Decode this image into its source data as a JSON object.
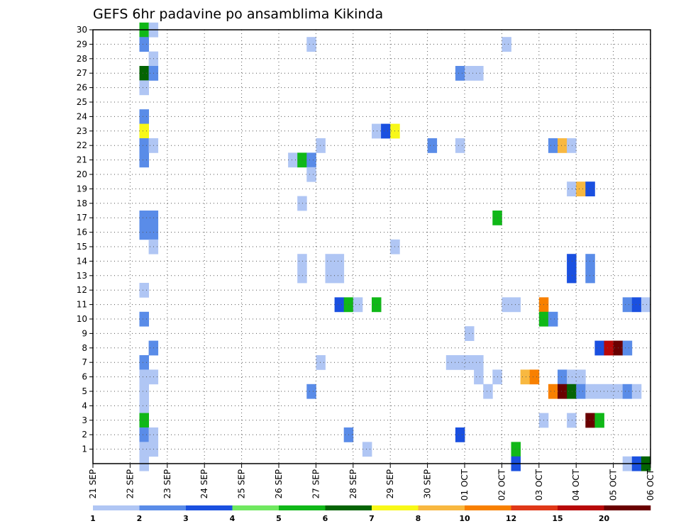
{
  "chart_data": {
    "type": "heatmap",
    "title": "GEFS 6hr padavine po ansamblima Kikinda",
    "xlabel": "",
    "ylabel": "",
    "x_tick_labels": [
      "21 SEP",
      "22 SEP",
      "23 SEP",
      "24 SEP",
      "25 SEP",
      "26 SEP",
      "27 SEP",
      "28 SEP",
      "29 SEP",
      "30 SEP",
      "01 OCT",
      "02 OCT",
      "03 OCT",
      "04 OCT",
      "05 OCT",
      "06 OCT"
    ],
    "x_range": [
      "21 SEP 00Z",
      "06 OCT 00Z"
    ],
    "time_step_hours": 6,
    "y_tick_labels": [
      "1",
      "2",
      "3",
      "4",
      "5",
      "6",
      "7",
      "8",
      "9",
      "10",
      "11",
      "12",
      "13",
      "14",
      "15",
      "16",
      "17",
      "18",
      "19",
      "20",
      "21",
      "22",
      "23",
      "24",
      "25",
      "26",
      "27",
      "28",
      "29",
      "30"
    ],
    "ylim": [
      0,
      30
    ],
    "grid": true,
    "colorbar": {
      "position": "bottom",
      "levels": [
        "1",
        "2",
        "3",
        "4",
        "5",
        "6",
        "7",
        "8",
        "10",
        "12",
        "15",
        "20"
      ],
      "colors": [
        "#b0c6f4",
        "#5a8ce8",
        "#1a50e0",
        "#70e860",
        "#10b818",
        "#046404",
        "#f8f818",
        "#f8b840",
        "#f88000",
        "#e03818",
        "#b80808",
        "#6a0000"
      ]
    },
    "cells": [
      {
        "member": 30,
        "step": 5,
        "value": 5
      },
      {
        "member": 30,
        "step": 6,
        "value": 1
      },
      {
        "member": 29,
        "step": 5,
        "value": 2
      },
      {
        "member": 29,
        "step": 23,
        "value": 1
      },
      {
        "member": 29,
        "step": 44,
        "value": 1
      },
      {
        "member": 28,
        "step": 6,
        "value": 1
      },
      {
        "member": 27,
        "step": 5,
        "value": 6
      },
      {
        "member": 27,
        "step": 6,
        "value": 2
      },
      {
        "member": 27,
        "step": 39,
        "value": 2
      },
      {
        "member": 27,
        "step": 40,
        "value": 1
      },
      {
        "member": 27,
        "step": 41,
        "value": 1
      },
      {
        "member": 26,
        "step": 5,
        "value": 1
      },
      {
        "member": 24,
        "step": 5,
        "value": 2
      },
      {
        "member": 23,
        "step": 5,
        "value": 7
      },
      {
        "member": 23,
        "step": 30,
        "value": 1
      },
      {
        "member": 23,
        "step": 31,
        "value": 3
      },
      {
        "member": 23,
        "step": 32,
        "value": 7
      },
      {
        "member": 22,
        "step": 5,
        "value": 2
      },
      {
        "member": 22,
        "step": 6,
        "value": 1
      },
      {
        "member": 22,
        "step": 24,
        "value": 1
      },
      {
        "member": 22,
        "step": 36,
        "value": 2
      },
      {
        "member": 22,
        "step": 39,
        "value": 1
      },
      {
        "member": 22,
        "step": 49,
        "value": 2
      },
      {
        "member": 22,
        "step": 50,
        "value": 8
      },
      {
        "member": 22,
        "step": 51,
        "value": 1
      },
      {
        "member": 21,
        "step": 5,
        "value": 2
      },
      {
        "member": 21,
        "step": 21,
        "value": 1
      },
      {
        "member": 21,
        "step": 22,
        "value": 5
      },
      {
        "member": 21,
        "step": 23,
        "value": 2
      },
      {
        "member": 20,
        "step": 23,
        "value": 1
      },
      {
        "member": 19,
        "step": 51,
        "value": 1
      },
      {
        "member": 19,
        "step": 52,
        "value": 8
      },
      {
        "member": 19,
        "step": 53,
        "value": 3
      },
      {
        "member": 18,
        "step": 22,
        "value": 1
      },
      {
        "member": 17,
        "step": 5,
        "value": 2
      },
      {
        "member": 17,
        "step": 6,
        "value": 2
      },
      {
        "member": 17,
        "step": 43,
        "value": 5
      },
      {
        "member": 16,
        "step": 5,
        "value": 2
      },
      {
        "member": 16,
        "step": 6,
        "value": 2
      },
      {
        "member": 15,
        "step": 6,
        "value": 1
      },
      {
        "member": 15,
        "step": 32,
        "value": 1
      },
      {
        "member": 14,
        "step": 22,
        "value": 1
      },
      {
        "member": 14,
        "step": 25,
        "value": 1
      },
      {
        "member": 14,
        "step": 26,
        "value": 1
      },
      {
        "member": 14,
        "step": 51,
        "value": 3
      },
      {
        "member": 14,
        "step": 53,
        "value": 2
      },
      {
        "member": 13,
        "step": 22,
        "value": 1
      },
      {
        "member": 13,
        "step": 25,
        "value": 1
      },
      {
        "member": 13,
        "step": 26,
        "value": 1
      },
      {
        "member": 13,
        "step": 51,
        "value": 3
      },
      {
        "member": 13,
        "step": 53,
        "value": 2
      },
      {
        "member": 12,
        "step": 5,
        "value": 1
      },
      {
        "member": 11,
        "step": 26,
        "value": 3
      },
      {
        "member": 11,
        "step": 27,
        "value": 5
      },
      {
        "member": 11,
        "step": 28,
        "value": 1
      },
      {
        "member": 11,
        "step": 30,
        "value": 5
      },
      {
        "member": 11,
        "step": 44,
        "value": 1
      },
      {
        "member": 11,
        "step": 45,
        "value": 1
      },
      {
        "member": 11,
        "step": 48,
        "value": 10
      },
      {
        "member": 11,
        "step": 57,
        "value": 2
      },
      {
        "member": 11,
        "step": 58,
        "value": 3
      },
      {
        "member": 11,
        "step": 59,
        "value": 1
      },
      {
        "member": 10,
        "step": 5,
        "value": 2
      },
      {
        "member": 10,
        "step": 48,
        "value": 5
      },
      {
        "member": 10,
        "step": 49,
        "value": 2
      },
      {
        "member": 9,
        "step": 40,
        "value": 1
      },
      {
        "member": 8,
        "step": 6,
        "value": 2
      },
      {
        "member": 8,
        "step": 54,
        "value": 3
      },
      {
        "member": 8,
        "step": 55,
        "value": 15
      },
      {
        "member": 8,
        "step": 56,
        "value": 20
      },
      {
        "member": 8,
        "step": 57,
        "value": 2
      },
      {
        "member": 7,
        "step": 5,
        "value": 2
      },
      {
        "member": 7,
        "step": 24,
        "value": 1
      },
      {
        "member": 7,
        "step": 38,
        "value": 1
      },
      {
        "member": 7,
        "step": 39,
        "value": 1
      },
      {
        "member": 7,
        "step": 40,
        "value": 1
      },
      {
        "member": 7,
        "step": 41,
        "value": 1
      },
      {
        "member": 6,
        "step": 5,
        "value": 1
      },
      {
        "member": 6,
        "step": 6,
        "value": 1
      },
      {
        "member": 6,
        "step": 41,
        "value": 1
      },
      {
        "member": 6,
        "step": 43,
        "value": 1
      },
      {
        "member": 6,
        "step": 46,
        "value": 8
      },
      {
        "member": 6,
        "step": 47,
        "value": 10
      },
      {
        "member": 6,
        "step": 50,
        "value": 2
      },
      {
        "member": 6,
        "step": 51,
        "value": 1
      },
      {
        "member": 6,
        "step": 52,
        "value": 1
      },
      {
        "member": 5,
        "step": 5,
        "value": 1
      },
      {
        "member": 5,
        "step": 23,
        "value": 2
      },
      {
        "member": 5,
        "step": 42,
        "value": 1
      },
      {
        "member": 5,
        "step": 49,
        "value": 10
      },
      {
        "member": 5,
        "step": 50,
        "value": 20
      },
      {
        "member": 5,
        "step": 51,
        "value": 6
      },
      {
        "member": 5,
        "step": 52,
        "value": 2
      },
      {
        "member": 5,
        "step": 53,
        "value": 1
      },
      {
        "member": 5,
        "step": 54,
        "value": 1
      },
      {
        "member": 5,
        "step": 55,
        "value": 1
      },
      {
        "member": 5,
        "step": 56,
        "value": 1
      },
      {
        "member": 5,
        "step": 57,
        "value": 2
      },
      {
        "member": 5,
        "step": 58,
        "value": 1
      },
      {
        "member": 4,
        "step": 5,
        "value": 1
      },
      {
        "member": 3,
        "step": 5,
        "value": 5
      },
      {
        "member": 3,
        "step": 48,
        "value": 1
      },
      {
        "member": 3,
        "step": 51,
        "value": 1
      },
      {
        "member": 3,
        "step": 53,
        "value": 20
      },
      {
        "member": 3,
        "step": 54,
        "value": 5
      },
      {
        "member": 2,
        "step": 5,
        "value": 2
      },
      {
        "member": 2,
        "step": 6,
        "value": 1
      },
      {
        "member": 2,
        "step": 27,
        "value": 2
      },
      {
        "member": 2,
        "step": 39,
        "value": 3
      },
      {
        "member": 1,
        "step": 5,
        "value": 1
      },
      {
        "member": 1,
        "step": 6,
        "value": 1
      },
      {
        "member": 1,
        "step": 29,
        "value": 1
      },
      {
        "member": 1,
        "step": 45,
        "value": 5
      },
      {
        "member": 0,
        "step": 5,
        "value": 1
      },
      {
        "member": 0,
        "step": 45,
        "value": 3
      },
      {
        "member": 0,
        "step": 57,
        "value": 1
      },
      {
        "member": 0,
        "step": 58,
        "value": 3
      },
      {
        "member": 0,
        "step": 59,
        "value": 6
      }
    ]
  }
}
